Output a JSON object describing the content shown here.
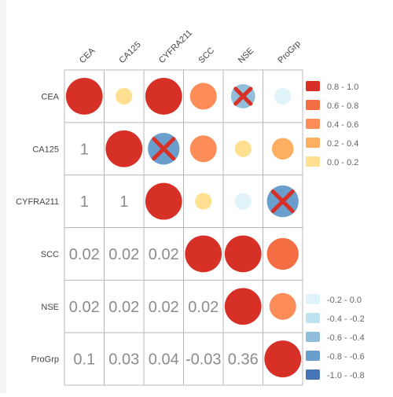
{
  "chart_data": {
    "type": "heatmap",
    "subtype": "correlation-matrix",
    "variables": [
      "CEA",
      "CA125",
      "CYFRA211",
      "SCC",
      "NSE",
      "ProGrp"
    ],
    "lower_triangle_values": [
      [
        "",
        "",
        "",
        "",
        "",
        ""
      ],
      [
        "1",
        "",
        "",
        "",
        "",
        ""
      ],
      [
        "1",
        "1",
        "",
        "",
        "",
        ""
      ],
      [
        "0.02",
        "0.02",
        "0.02",
        "",
        "",
        ""
      ],
      [
        "0.02",
        "0.02",
        "0.02",
        "0.02",
        "",
        ""
      ],
      [
        "0.1",
        "0.03",
        "0.04",
        "-0.03",
        "0.36",
        ""
      ]
    ],
    "upper_triangle_circles": [
      {
        "row": 0,
        "col": 0,
        "value": 0.9,
        "crossed": false
      },
      {
        "row": 0,
        "col": 1,
        "value": 0.1,
        "crossed": false
      },
      {
        "row": 0,
        "col": 2,
        "value": 0.9,
        "crossed": false
      },
      {
        "row": 0,
        "col": 3,
        "value": 0.5,
        "crossed": false
      },
      {
        "row": 0,
        "col": 4,
        "value": -0.4,
        "crossed": true
      },
      {
        "row": 0,
        "col": 5,
        "value": -0.1,
        "crossed": false
      },
      {
        "row": 1,
        "col": 1,
        "value": 0.9,
        "crossed": false
      },
      {
        "row": 1,
        "col": 2,
        "value": -0.7,
        "crossed": true
      },
      {
        "row": 1,
        "col": 3,
        "value": 0.5,
        "crossed": false
      },
      {
        "row": 1,
        "col": 4,
        "value": 0.1,
        "crossed": false
      },
      {
        "row": 1,
        "col": 5,
        "value": 0.3,
        "crossed": false
      },
      {
        "row": 2,
        "col": 2,
        "value": 0.9,
        "crossed": false
      },
      {
        "row": 2,
        "col": 3,
        "value": 0.1,
        "crossed": false
      },
      {
        "row": 2,
        "col": 4,
        "value": -0.1,
        "crossed": false
      },
      {
        "row": 2,
        "col": 5,
        "value": -0.7,
        "crossed": true
      },
      {
        "row": 3,
        "col": 3,
        "value": 0.9,
        "crossed": false
      },
      {
        "row": 3,
        "col": 4,
        "value": 0.9,
        "crossed": false
      },
      {
        "row": 3,
        "col": 5,
        "value": 0.7,
        "crossed": false
      },
      {
        "row": 4,
        "col": 4,
        "value": 0.9,
        "crossed": false
      },
      {
        "row": 4,
        "col": 5,
        "value": 0.5,
        "crossed": false
      },
      {
        "row": 5,
        "col": 5,
        "value": 0.9,
        "crossed": false
      }
    ],
    "legend_positive": [
      {
        "label": "0.8 - 1.0",
        "color": "#d73027"
      },
      {
        "label": "0.6 - 0.8",
        "color": "#f46d43"
      },
      {
        "label": "0.4 - 0.6",
        "color": "#fc8d59"
      },
      {
        "label": "0.2 - 0.4",
        "color": "#fdae61"
      },
      {
        "label": "0.0 - 0.2",
        "color": "#fee090"
      }
    ],
    "legend_negative": [
      {
        "label": "-0.2 - 0.0",
        "color": "#e0f3f8"
      },
      {
        "label": "-0.4 - -0.2",
        "color": "#bde3ef"
      },
      {
        "label": "-0.6 - -0.4",
        "color": "#91bfdb"
      },
      {
        "label": "-0.8 - -0.6",
        "color": "#6a9fcd"
      },
      {
        "label": "-1.0 - -0.8",
        "color": "#4575b4"
      }
    ],
    "legend_placement": "right",
    "grid": true,
    "cross_color": "#d73027"
  }
}
